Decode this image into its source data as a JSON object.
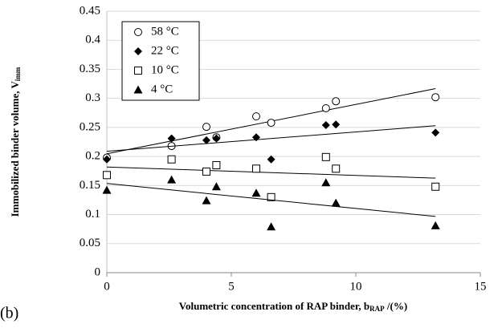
{
  "chart_data": {
    "type": "scatter",
    "panel_label": "(b)",
    "x_label": [
      "Volumetric concentration of RAP binder, b",
      "RAP",
      " /(%)"
    ],
    "y_label": [
      "Immobilized binder volume, V",
      "imm"
    ],
    "xlim": [
      0,
      15
    ],
    "xticks": [
      0,
      5,
      10,
      15
    ],
    "ylim": [
      0,
      0.45
    ],
    "yticks": [
      0,
      0.05,
      0.1,
      0.15,
      0.2,
      0.25,
      0.3,
      0.35,
      0.4,
      0.45
    ],
    "grid": true,
    "legend": "upper left",
    "trendline": "linear",
    "series": [
      {
        "name": "58 °C",
        "marker": "circle-open",
        "color": "#000000",
        "x": [
          0,
          2.6,
          4,
          4.4,
          6,
          6.6,
          8.8,
          9.2,
          13.2
        ],
        "values": [
          0.198,
          0.218,
          0.251,
          0.233,
          0.269,
          0.258,
          0.283,
          0.295,
          0.302
        ]
      },
      {
        "name": "22 °C",
        "marker": "diamond",
        "color": "#000000",
        "x": [
          0,
          2.6,
          4,
          4.4,
          6,
          6.6,
          8.8,
          9.2,
          13.2
        ],
        "values": [
          0.195,
          0.231,
          0.228,
          0.231,
          0.233,
          0.195,
          0.254,
          0.255,
          0.241
        ]
      },
      {
        "name": "10 °C",
        "marker": "square-open",
        "color": "#000000",
        "x": [
          0,
          2.6,
          4,
          4.4,
          6,
          6.6,
          8.8,
          9.2,
          13.2
        ],
        "values": [
          0.168,
          0.195,
          0.174,
          0.185,
          0.179,
          0.13,
          0.199,
          0.179,
          0.148
        ]
      },
      {
        "name": "4 °C",
        "marker": "triangle",
        "color": "#000000",
        "x": [
          0,
          2.6,
          4,
          4.4,
          6,
          6.6,
          8.8,
          9.2,
          13.2
        ],
        "values": [
          0.142,
          0.16,
          0.124,
          0.148,
          0.137,
          0.079,
          0.155,
          0.12,
          0.081
        ]
      }
    ]
  }
}
